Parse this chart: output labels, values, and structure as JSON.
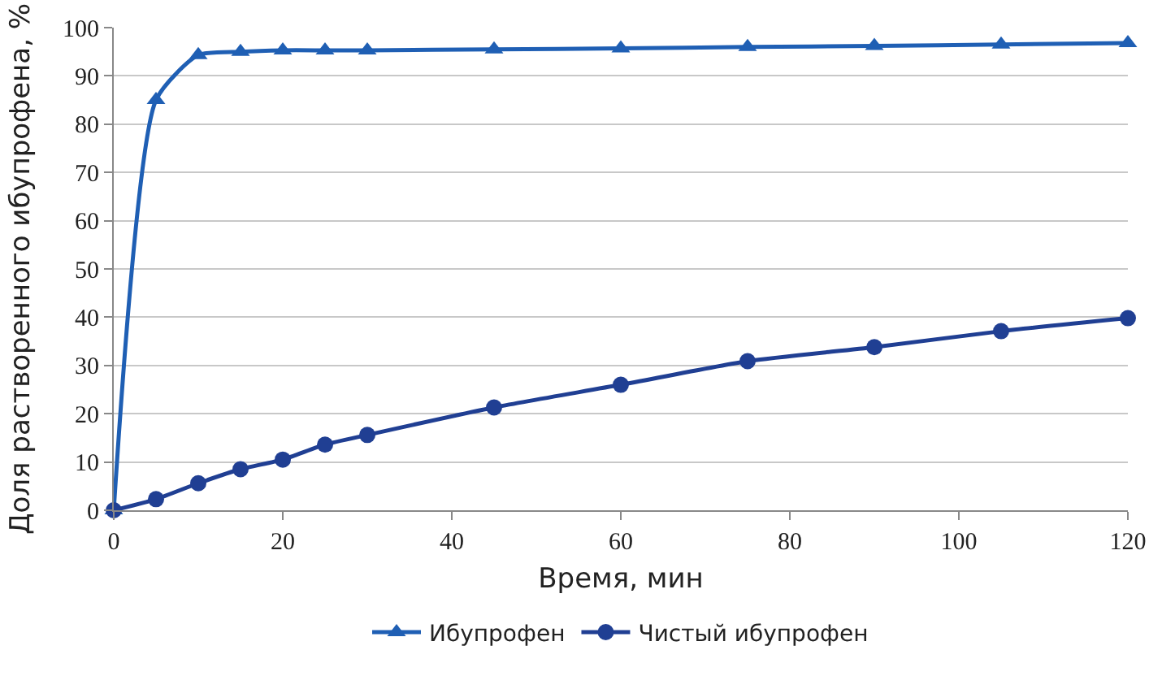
{
  "chart_data": {
    "type": "line",
    "xlabel": "Время, мин",
    "ylabel": "Доля растворенного ибупрофена, %",
    "x": [
      0,
      5,
      10,
      15,
      20,
      25,
      30,
      45,
      60,
      75,
      90,
      105,
      120
    ],
    "series": [
      {
        "name": "Ибупрофен",
        "color": "#1f5fb4",
        "marker": "triangle",
        "values": [
          0,
          85,
          94.3,
          95,
          95.3,
          95.3,
          95.3,
          95.5,
          95.7,
          96,
          96.2,
          96.5,
          96.8
        ]
      },
      {
        "name": "Чистый ибупрофен",
        "color": "#203f93",
        "marker": "circle",
        "values": [
          0,
          2.3,
          5.6,
          8.5,
          10.5,
          13.6,
          15.6,
          21.3,
          26,
          30.9,
          33.8,
          37.1,
          39.8
        ]
      }
    ],
    "xlim": [
      0,
      120
    ],
    "xticks": [
      0,
      20,
      40,
      60,
      80,
      100,
      120
    ],
    "ylim": [
      0,
      100
    ],
    "yticks": [
      0,
      10,
      20,
      30,
      40,
      50,
      60,
      70,
      80,
      90,
      100
    ],
    "grid": "y",
    "legend": "bottom"
  }
}
